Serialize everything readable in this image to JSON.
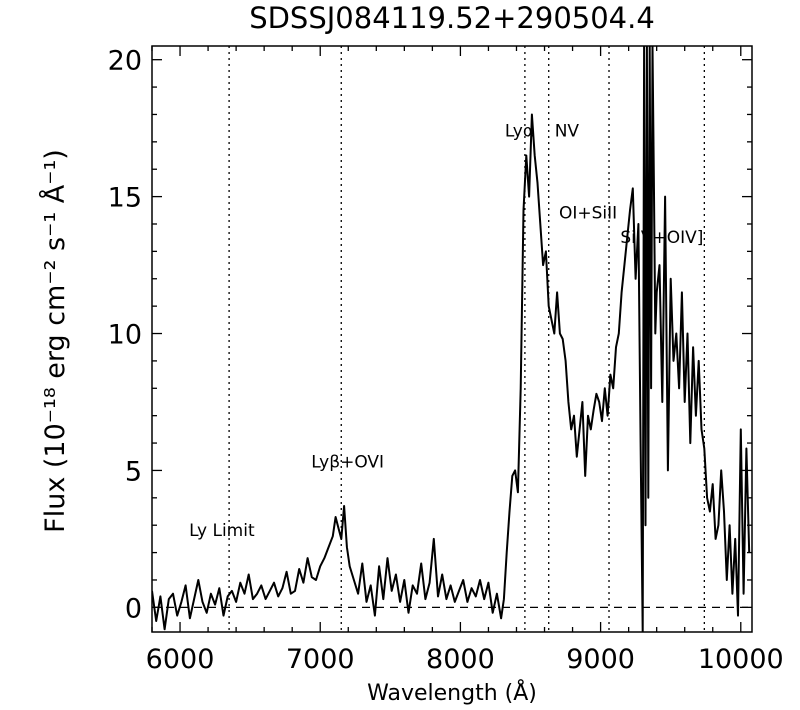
{
  "chart_data": {
    "type": "line",
    "title": "SDSSJ084119.52+290504.4",
    "xlabel": "Wavelength (Å)",
    "ylabel": "Flux (10⁻¹⁸ erg cm⁻² s⁻¹ Å⁻¹)",
    "xlim": [
      5800,
      10080
    ],
    "ylim": [
      -0.9,
      20.5
    ],
    "x_ticks": [
      6000,
      7000,
      8000,
      9000,
      10000
    ],
    "x_tick_labels": [
      "6000",
      "7000",
      "8000",
      "9000",
      "10000"
    ],
    "y_ticks": [
      0,
      5,
      10,
      15,
      20
    ],
    "y_tick_labels": [
      "0",
      "5",
      "10",
      "15",
      "20"
    ],
    "grid": false,
    "zero_line": {
      "y": 0,
      "style": "dashed"
    },
    "line_markers": [
      {
        "x": 6350,
        "label": "Ly Limit",
        "label_y": 2.6
      },
      {
        "x": 7150,
        "label": "Lyβ+OVI",
        "label_y": 5.1
      },
      {
        "x": 8460,
        "label": "Lyα",
        "label_y": 17.2
      },
      {
        "x": 8630,
        "label": "NV",
        "label_y": 17.2
      },
      {
        "x": 9060,
        "label": "OI+SiII",
        "label_y": 14.2
      },
      {
        "x": 9740,
        "label": "SiIV+OIV]",
        "label_y": 13.3
      }
    ],
    "series": [
      {
        "x": [
          5800,
          5830,
          5860,
          5890,
          5920,
          5950,
          5980,
          6010,
          6040,
          6070,
          6100,
          6130,
          6160,
          6190,
          6220,
          6250,
          6280,
          6310,
          6340,
          6370,
          6400,
          6430,
          6460,
          6490,
          6520,
          6550,
          6580,
          6610,
          6640,
          6670,
          6700,
          6730,
          6760,
          6790,
          6820,
          6850,
          6880,
          6910,
          6940,
          6970,
          7000,
          7030,
          7060,
          7090,
          7110,
          7130,
          7150,
          7170,
          7190,
          7210,
          7240,
          7270,
          7300,
          7330,
          7360,
          7390,
          7420,
          7450,
          7480,
          7510,
          7540,
          7570,
          7600,
          7630,
          7660,
          7690,
          7720,
          7750,
          7780,
          7810,
          7840,
          7870,
          7900,
          7930,
          7960,
          7990,
          8020,
          8050,
          8080,
          8110,
          8140,
          8170,
          8200,
          8230,
          8260,
          8290,
          8310,
          8330,
          8350,
          8370,
          8390,
          8410,
          8430,
          8450,
          8470,
          8490,
          8510,
          8530,
          8550,
          8570,
          8590,
          8610,
          8630,
          8650,
          8670,
          8690,
          8710,
          8730,
          8750,
          8770,
          8790,
          8810,
          8830,
          8850,
          8870,
          8890,
          8910,
          8930,
          8950,
          8970,
          8990,
          9010,
          9030,
          9050,
          9070,
          9090,
          9110,
          9130,
          9150,
          9170,
          9190,
          9210,
          9230,
          9250,
          9270,
          9285,
          9300,
          9310,
          9320,
          9330,
          9340,
          9350,
          9360,
          9370,
          9380,
          9390,
          9400,
          9420,
          9440,
          9460,
          9480,
          9500,
          9520,
          9540,
          9560,
          9580,
          9600,
          9620,
          9640,
          9660,
          9680,
          9700,
          9720,
          9740,
          9760,
          9780,
          9800,
          9820,
          9840,
          9860,
          9880,
          9900,
          9920,
          9940,
          9960,
          9980,
          10000,
          10020,
          10040,
          10060
        ],
        "y": [
          0.6,
          -0.5,
          0.4,
          -0.8,
          0.3,
          0.5,
          -0.3,
          0.2,
          0.8,
          -0.4,
          0.3,
          1.0,
          0.2,
          -0.2,
          0.5,
          0.1,
          0.7,
          -0.3,
          0.4,
          0.6,
          0.2,
          0.9,
          0.5,
          1.2,
          0.3,
          0.5,
          0.8,
          0.3,
          0.6,
          0.9,
          0.4,
          0.7,
          1.3,
          0.5,
          0.6,
          1.4,
          0.9,
          1.8,
          1.1,
          1.0,
          1.5,
          1.8,
          2.2,
          2.6,
          3.3,
          2.9,
          2.5,
          3.7,
          2.2,
          1.5,
          1.0,
          0.5,
          1.6,
          0.2,
          0.8,
          -0.3,
          1.5,
          0.3,
          1.8,
          0.6,
          1.2,
          0.2,
          1.0,
          -0.2,
          0.8,
          0.5,
          1.6,
          0.3,
          0.9,
          2.5,
          0.4,
          1.2,
          0.3,
          0.8,
          0.2,
          0.6,
          1.0,
          0.2,
          0.7,
          0.4,
          1.0,
          0.3,
          0.9,
          -0.2,
          0.5,
          -0.4,
          0.3,
          2.0,
          3.5,
          4.8,
          5.0,
          4.2,
          8.0,
          14.5,
          16.5,
          15.0,
          18.0,
          16.5,
          15.5,
          14.0,
          12.5,
          13.0,
          11.0,
          10.5,
          10.0,
          11.5,
          10.0,
          9.8,
          9.0,
          7.5,
          6.5,
          7.0,
          5.5,
          6.5,
          7.5,
          4.8,
          7.0,
          6.5,
          7.2,
          7.8,
          7.5,
          6.8,
          8.0,
          7.0,
          8.5,
          8.0,
          9.5,
          10.0,
          11.5,
          12.5,
          13.5,
          14.5,
          15.3,
          12.0,
          14.0,
          6.0,
          -0.9,
          20.5,
          3.0,
          20.5,
          4.0,
          20.5,
          8.0,
          20.5,
          15.5,
          10.0,
          11.5,
          12.5,
          7.5,
          15.0,
          5.0,
          12.0,
          9.0,
          10.0,
          8.0,
          11.5,
          7.5,
          10.0,
          6.0,
          9.5,
          7.0,
          9.0,
          6.5,
          5.8,
          4.0,
          3.5,
          4.5,
          2.5,
          3.0,
          5.0,
          3.5,
          1.0,
          3.0,
          0.5,
          2.5,
          -0.3,
          6.5,
          0.5,
          5.8,
          2.0
        ]
      }
    ]
  }
}
